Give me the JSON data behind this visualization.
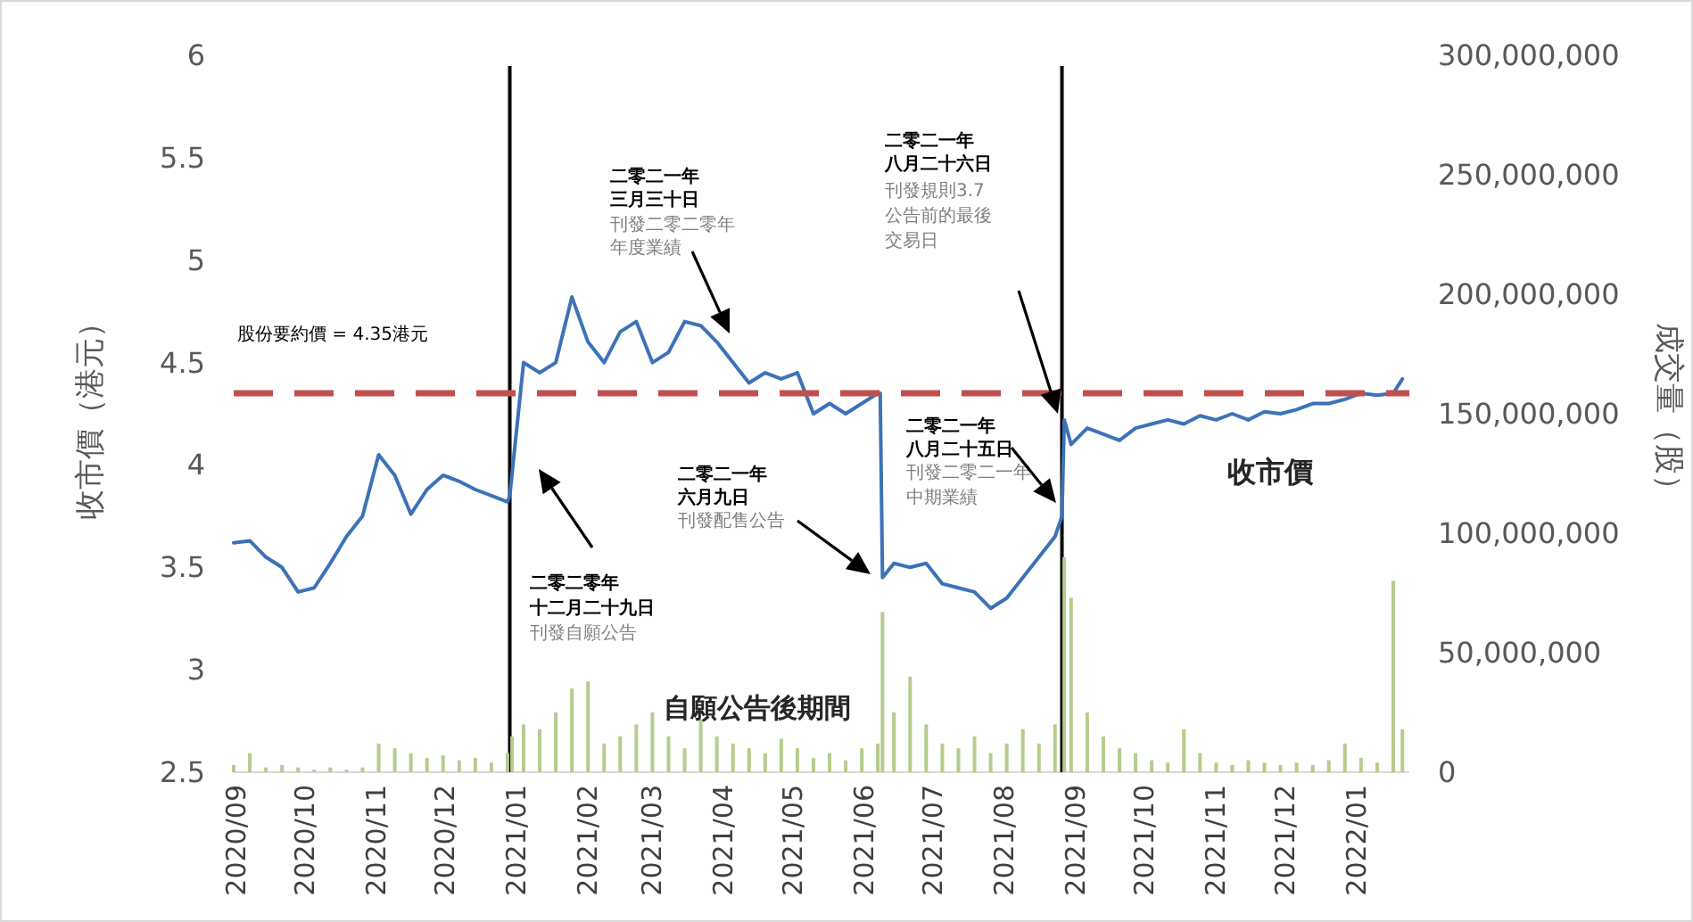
{
  "chart_data": {
    "type": "line",
    "ylabel": "收市價（港元）",
    "y2label": "成交量（股）",
    "xlim": [
      "2020-08-31",
      "2022-01-24"
    ],
    "xticks": [
      {
        "value": "2020-09-01",
        "label": "2020/09"
      },
      {
        "value": "2020-10-01",
        "label": "2020/10"
      },
      {
        "value": "2020-11-01",
        "label": "2020/11"
      },
      {
        "value": "2020-12-01",
        "label": "2020/12"
      },
      {
        "value": "2021-01-01",
        "label": "2021/01"
      },
      {
        "value": "2021-02-01",
        "label": "2021/02"
      },
      {
        "value": "2021-03-01",
        "label": "2021/03"
      },
      {
        "value": "2021-04-01",
        "label": "2021/04"
      },
      {
        "value": "2021-05-01",
        "label": "2021/05"
      },
      {
        "value": "2021-06-01",
        "label": "2021/06"
      },
      {
        "value": "2021-07-01",
        "label": "2021/07"
      },
      {
        "value": "2021-08-01",
        "label": "2021/08"
      },
      {
        "value": "2021-09-01",
        "label": "2021/09"
      },
      {
        "value": "2021-10-01",
        "label": "2021/10"
      },
      {
        "value": "2021-11-01",
        "label": "2021/11"
      },
      {
        "value": "2021-12-01",
        "label": "2021/12"
      },
      {
        "value": "2022-01-01",
        "label": "2022/01"
      }
    ],
    "ylim": [
      2.5,
      6
    ],
    "yticks": [
      2.5,
      3,
      3.5,
      4,
      4.5,
      5,
      5.5,
      6
    ],
    "y2lim": [
      0,
      300000000
    ],
    "y2ticks": [
      0,
      {
        "value": 50000000,
        "label": "50,000,000"
      },
      {
        "value": 100000000,
        "label": "100,000,000"
      },
      {
        "value": 150000000,
        "label": "150,000,000"
      },
      {
        "value": 200000000,
        "label": "200,000,000"
      },
      {
        "value": 250000000,
        "label": "250,000,000"
      },
      {
        "value": 300000000,
        "label": "300,000,000"
      }
    ],
    "series": [
      {
        "type": "bar",
        "axis": "y2",
        "color": "#b5cc8e",
        "x": [
          "2020-08-31",
          "2020-09-07",
          "2020-09-14",
          "2020-09-21",
          "2020-09-28",
          "2020-10-05",
          "2020-10-12",
          "2020-10-19",
          "2020-10-26",
          "2020-11-02",
          "2020-11-09",
          "2020-11-16",
          "2020-11-23",
          "2020-11-30",
          "2020-12-07",
          "2020-12-14",
          "2020-12-21",
          "2020-12-28",
          "2020-12-30",
          "2021-01-04",
          "2021-01-11",
          "2021-01-18",
          "2021-01-25",
          "2021-02-01",
          "2021-02-08",
          "2021-02-15",
          "2021-02-22",
          "2021-03-01",
          "2021-03-08",
          "2021-03-15",
          "2021-03-22",
          "2021-03-29",
          "2021-04-05",
          "2021-04-12",
          "2021-04-19",
          "2021-04-26",
          "2021-05-03",
          "2021-05-10",
          "2021-05-17",
          "2021-05-24",
          "2021-05-31",
          "2021-06-07",
          "2021-06-09",
          "2021-06-14",
          "2021-06-21",
          "2021-06-28",
          "2021-07-05",
          "2021-07-12",
          "2021-07-19",
          "2021-07-26",
          "2021-08-02",
          "2021-08-09",
          "2021-08-16",
          "2021-08-23",
          "2021-08-27",
          "2021-08-30",
          "2021-09-06",
          "2021-09-13",
          "2021-09-20",
          "2021-09-27",
          "2021-10-04",
          "2021-10-11",
          "2021-10-18",
          "2021-10-25",
          "2021-11-01",
          "2021-11-08",
          "2021-11-15",
          "2021-11-22",
          "2021-11-29",
          "2021-12-06",
          "2021-12-13",
          "2021-12-20",
          "2021-12-27",
          "2022-01-03",
          "2022-01-10",
          "2022-01-17",
          "2022-01-21"
        ],
        "values": [
          3000000,
          8000000,
          2000000,
          3000000,
          2000000,
          1000000,
          2000000,
          1000000,
          2000000,
          12000000,
          10000000,
          8000000,
          6000000,
          7000000,
          5000000,
          6000000,
          4000000,
          8000000,
          15000000,
          20000000,
          18000000,
          25000000,
          35000000,
          38000000,
          12000000,
          15000000,
          20000000,
          25000000,
          15000000,
          10000000,
          22000000,
          15000000,
          12000000,
          10000000,
          8000000,
          14000000,
          10000000,
          6000000,
          8000000,
          5000000,
          10000000,
          12000000,
          67000000,
          25000000,
          40000000,
          20000000,
          12000000,
          10000000,
          15000000,
          8000000,
          12000000,
          18000000,
          12000000,
          20000000,
          90000000,
          73000000,
          25000000,
          15000000,
          10000000,
          8000000,
          5000000,
          4000000,
          18000000,
          8000000,
          4000000,
          3000000,
          5000000,
          4000000,
          3000000,
          4000000,
          3000000,
          5000000,
          12000000,
          6000000,
          4000000,
          80000000,
          18000000
        ]
      },
      {
        "name": "收市價",
        "color": "#3c72b8",
        "x": [
          "2020-08-31",
          "2020-09-07",
          "2020-09-14",
          "2020-09-21",
          "2020-09-28",
          "2020-10-05",
          "2020-10-12",
          "2020-10-19",
          "2020-10-26",
          "2020-11-02",
          "2020-11-09",
          "2020-11-16",
          "2020-11-23",
          "2020-11-30",
          "2020-12-07",
          "2020-12-14",
          "2020-12-21",
          "2020-12-28",
          "2020-12-29",
          "2021-01-04",
          "2021-01-11",
          "2021-01-18",
          "2021-01-25",
          "2021-02-01",
          "2021-02-08",
          "2021-02-15",
          "2021-02-22",
          "2021-03-01",
          "2021-03-08",
          "2021-03-15",
          "2021-03-22",
          "2021-03-29",
          "2021-04-05",
          "2021-04-12",
          "2021-04-19",
          "2021-04-26",
          "2021-05-03",
          "2021-05-10",
          "2021-05-17",
          "2021-05-24",
          "2021-05-31",
          "2021-06-07",
          "2021-06-08",
          "2021-06-09",
          "2021-06-14",
          "2021-06-21",
          "2021-06-28",
          "2021-07-05",
          "2021-07-12",
          "2021-07-19",
          "2021-07-26",
          "2021-08-02",
          "2021-08-09",
          "2021-08-16",
          "2021-08-23",
          "2021-08-26",
          "2021-08-27",
          "2021-08-30",
          "2021-09-06",
          "2021-09-13",
          "2021-09-20",
          "2021-09-27",
          "2021-10-04",
          "2021-10-11",
          "2021-10-18",
          "2021-10-25",
          "2021-11-01",
          "2021-11-08",
          "2021-11-15",
          "2021-11-22",
          "2021-11-29",
          "2021-12-06",
          "2021-12-13",
          "2021-12-20",
          "2021-12-27",
          "2022-01-03",
          "2022-01-10",
          "2022-01-17",
          "2022-01-21"
        ],
        "values": [
          3.62,
          3.63,
          3.55,
          3.5,
          3.38,
          3.4,
          3.52,
          3.65,
          3.75,
          4.05,
          3.95,
          3.76,
          3.88,
          3.95,
          3.92,
          3.88,
          3.85,
          3.82,
          3.85,
          4.5,
          4.45,
          4.5,
          4.82,
          4.6,
          4.5,
          4.65,
          4.7,
          4.5,
          4.55,
          4.7,
          4.68,
          4.6,
          4.5,
          4.4,
          4.45,
          4.42,
          4.45,
          4.25,
          4.3,
          4.25,
          4.3,
          4.35,
          4.35,
          3.45,
          3.52,
          3.5,
          3.52,
          3.42,
          3.4,
          3.38,
          3.3,
          3.35,
          3.45,
          3.55,
          3.65,
          3.75,
          4.22,
          4.1,
          4.18,
          4.15,
          4.12,
          4.18,
          4.2,
          4.22,
          4.2,
          4.24,
          4.22,
          4.25,
          4.22,
          4.26,
          4.25,
          4.27,
          4.3,
          4.3,
          4.32,
          4.35,
          4.34,
          4.35,
          4.42
        ]
      }
    ],
    "ref_lines": [
      {
        "axis": "y",
        "value": 4.35,
        "label": "股份要約價 = 4.35港元",
        "color": "#c0504d",
        "line_style": "dashed"
      },
      {
        "axis": "x",
        "value": "2020-12-29",
        "color": "#000000",
        "line_style": "solid"
      },
      {
        "axis": "x",
        "value": "2021-08-26",
        "color": "#000000",
        "line_style": "solid"
      }
    ],
    "annotations": [
      "二零二零年",
      "十二月二十九日",
      "刊發自願公告",
      "二零二一年",
      "三月三十日",
      "刊發二零二零年",
      "年度業績",
      "二零二一年",
      "六月九日",
      "刊發配售公告",
      "二零二一年",
      "八月二十五日",
      "刊發二零二一年",
      "中期業績",
      "二零二一年",
      "八月二十六日",
      "刊發規則3.7",
      "公告前的最後",
      "交易日",
      "自願公告後期間"
    ]
  }
}
